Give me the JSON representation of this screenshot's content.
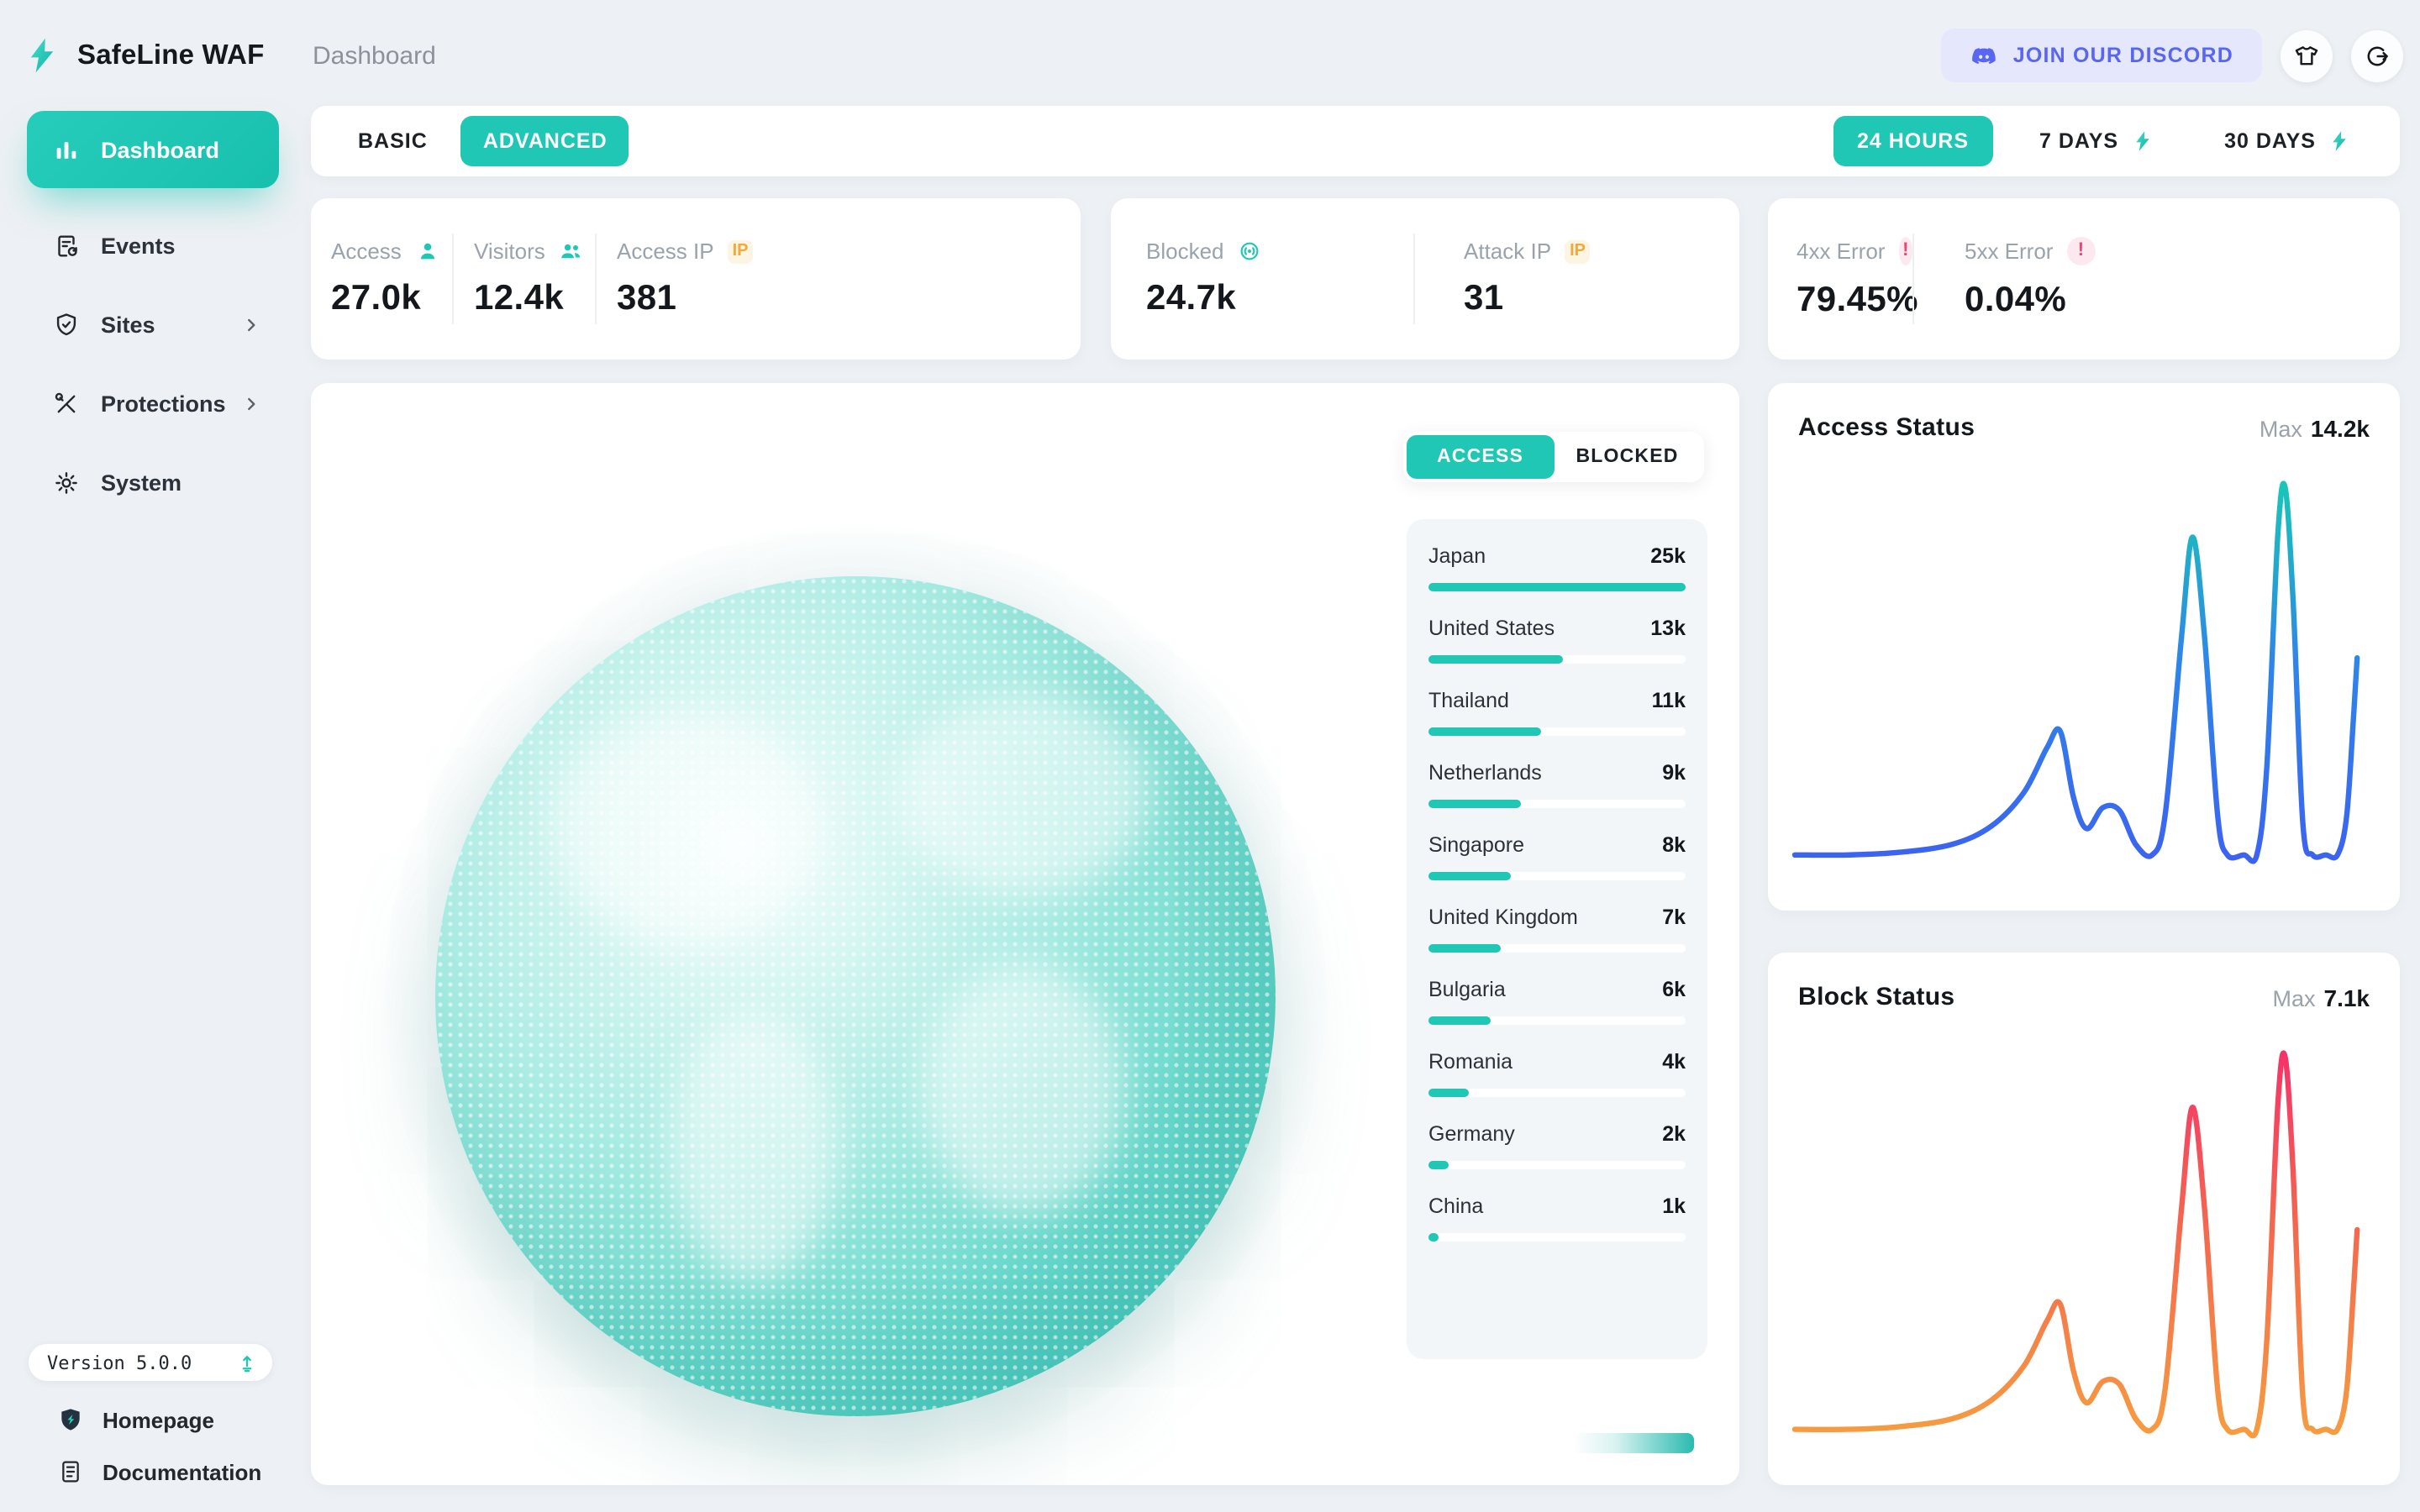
{
  "brand": {
    "name": "SafeLine WAF",
    "logo_icon": "bolt-icon"
  },
  "colors": {
    "accent": "#1fc7b4",
    "discord": "#5966f2",
    "amber": "#f2a93b",
    "alert": "#f0446e"
  },
  "header": {
    "breadcrumb": "Dashboard",
    "discord_label": "JOIN OUR DISCORD",
    "action_icons": [
      "tshirt-icon",
      "logout-icon"
    ]
  },
  "sidebar": {
    "items": [
      {
        "label": "Dashboard",
        "icon": "bar-chart-icon",
        "active": true,
        "chevron": false
      },
      {
        "label": "Events",
        "icon": "events-doc-icon",
        "active": false,
        "chevron": false
      },
      {
        "label": "Sites",
        "icon": "shield-check-icon",
        "active": false,
        "chevron": true
      },
      {
        "label": "Protections",
        "icon": "tools-icon",
        "active": false,
        "chevron": true
      },
      {
        "label": "System",
        "icon": "gear-icon",
        "active": false,
        "chevron": false
      }
    ],
    "version": {
      "label": "Version 5.0.0",
      "icon": "update-icon"
    },
    "links": [
      {
        "label": "Homepage",
        "icon": "shield-logo-icon"
      },
      {
        "label": "Documentation",
        "icon": "doc-icon"
      }
    ]
  },
  "toolbar": {
    "modes": [
      {
        "label": "BASIC",
        "active": false
      },
      {
        "label": "ADVANCED",
        "active": true
      }
    ],
    "ranges": [
      {
        "label": "24 HOURS",
        "active": true,
        "bolt": false
      },
      {
        "label": "7 DAYS",
        "active": false,
        "bolt": true
      },
      {
        "label": "30 DAYS",
        "active": false,
        "bolt": true
      }
    ]
  },
  "stats": [
    {
      "cols": [
        {
          "label": "Access",
          "icon": "person-icon",
          "value": "27.0k"
        },
        {
          "label": "Visitors",
          "icon": "people-icon",
          "value": "12.4k"
        },
        {
          "label": "Access IP",
          "icon": "ip-badge",
          "value": "381"
        }
      ]
    },
    {
      "cols": [
        {
          "label": "Blocked",
          "icon": "radar-icon",
          "value": "24.7k"
        },
        {
          "label": "Attack IP",
          "icon": "ip-badge",
          "value": "31"
        }
      ]
    },
    {
      "cols": [
        {
          "label": "4xx Error",
          "icon": "alert-icon",
          "value": "79.45%"
        },
        {
          "label": "5xx Error",
          "icon": "alert-icon",
          "value": "0.04%"
        }
      ]
    }
  ],
  "map": {
    "toggle": [
      {
        "label": "ACCESS",
        "active": true
      },
      {
        "label": "BLOCKED",
        "active": false
      }
    ],
    "max": 25,
    "countries": [
      {
        "name": "Japan",
        "value": "25k",
        "num": 25
      },
      {
        "name": "United States",
        "value": "13k",
        "num": 13
      },
      {
        "name": "Thailand",
        "value": "11k",
        "num": 11
      },
      {
        "name": "Netherlands",
        "value": "9k",
        "num": 9
      },
      {
        "name": "Singapore",
        "value": "8k",
        "num": 8
      },
      {
        "name": "United Kingdom",
        "value": "7k",
        "num": 7
      },
      {
        "name": "Bulgaria",
        "value": "6k",
        "num": 6
      },
      {
        "name": "Romania",
        "value": "4k",
        "num": 4
      },
      {
        "name": "Germany",
        "value": "2k",
        "num": 2
      },
      {
        "name": "China",
        "value": "1k",
        "num": 1
      }
    ]
  },
  "charts": [
    {
      "key": "access",
      "title": "Access Status",
      "max_label": "Max",
      "max_value": "14.2k"
    },
    {
      "key": "block",
      "title": "Block Status",
      "max_label": "Max",
      "max_value": "7.1k"
    }
  ],
  "chart_data": [
    {
      "type": "line",
      "title": "Access Status",
      "x_range": "last 24 hours (normalized 0-1)",
      "ymax": 14.2,
      "y_unit": "k requests",
      "grid": false,
      "legend": "none",
      "gradient": [
        "#16cdb2",
        "#2e86e8",
        "#3f5bf2"
      ],
      "series": [
        {
          "name": "access",
          "x": [
            0,
            0.08,
            0.16,
            0.24,
            0.3,
            0.35,
            0.385,
            0.405,
            0.425,
            0.445,
            0.47,
            0.495,
            0.52,
            0.545,
            0.565,
            0.59,
            0.607,
            0.625,
            0.645,
            0.66,
            0.685,
            0.705,
            0.72,
            0.737,
            0.748,
            0.76,
            0.775,
            0.79,
            0.81,
            0.828,
            0.842,
            0.853,
            0.858
          ],
          "y": [
            0.2,
            0.2,
            0.3,
            0.6,
            1.3,
            2.6,
            4.3,
            4.9,
            2.4,
            1.2,
            2.0,
            1.9,
            0.6,
            0.2,
            1.7,
            8.5,
            12.3,
            8.5,
            1.7,
            0.2,
            0.2,
            0.2,
            3.5,
            12.4,
            14.2,
            10.0,
            1.4,
            0.2,
            0.2,
            0.2,
            1.7,
            5.7,
            7.7
          ]
        }
      ]
    },
    {
      "type": "line",
      "title": "Block Status",
      "x_range": "last 24 hours (normalized 0-1)",
      "ymax": 7.1,
      "y_unit": "k requests",
      "grid": false,
      "legend": "none",
      "gradient": [
        "#f42e6b",
        "#f4694f",
        "#f6a73d"
      ],
      "series": [
        {
          "name": "blocked",
          "x": [
            0,
            0.08,
            0.16,
            0.24,
            0.3,
            0.35,
            0.385,
            0.405,
            0.425,
            0.445,
            0.47,
            0.495,
            0.52,
            0.545,
            0.565,
            0.59,
            0.607,
            0.625,
            0.645,
            0.66,
            0.685,
            0.705,
            0.72,
            0.737,
            0.748,
            0.76,
            0.775,
            0.79,
            0.81,
            0.828,
            0.842,
            0.853,
            0.858
          ],
          "y": [
            0.1,
            0.1,
            0.15,
            0.3,
            0.65,
            1.3,
            2.15,
            2.45,
            1.2,
            0.6,
            1.0,
            0.95,
            0.3,
            0.1,
            0.85,
            4.25,
            6.15,
            4.25,
            0.85,
            0.1,
            0.1,
            0.1,
            1.75,
            6.2,
            7.1,
            5.0,
            0.7,
            0.1,
            0.1,
            0.1,
            0.85,
            2.85,
            3.85
          ]
        }
      ]
    }
  ]
}
